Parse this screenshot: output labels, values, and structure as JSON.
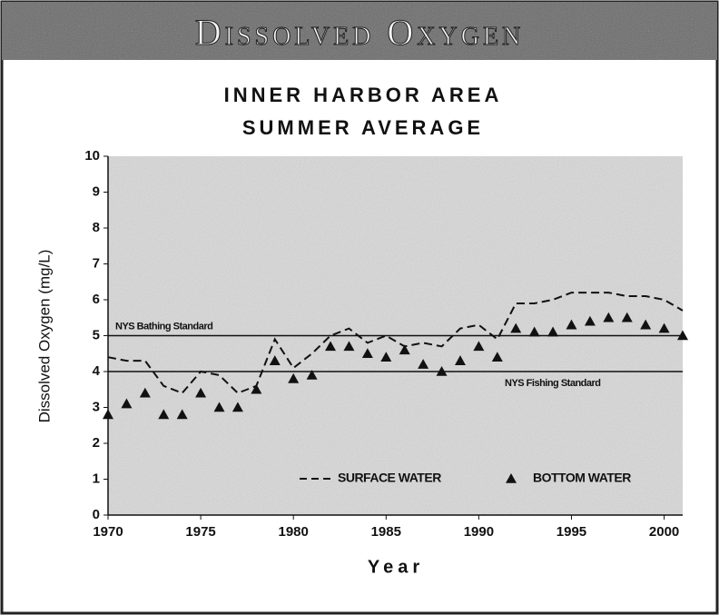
{
  "header": {
    "title": "Dissolved Oxygen"
  },
  "chart_data": {
    "type": "line",
    "title": "INNER HARBOR AREA",
    "subtitle": "SUMMER AVERAGE",
    "x_label": "Year",
    "y_label": "Dissolved Oxygen (mg/L)",
    "x": [
      1970,
      1971,
      1972,
      1973,
      1974,
      1975,
      1976,
      1977,
      1978,
      1979,
      1980,
      1981,
      1982,
      1983,
      1984,
      1985,
      1986,
      1987,
      1988,
      1989,
      1990,
      1991,
      1992,
      1993,
      1994,
      1995,
      1996,
      1997,
      1998,
      1999,
      2000,
      2001
    ],
    "series": [
      {
        "name": "SURFACE WATER",
        "color": "#111111",
        "style": "dashed",
        "values": [
          4.4,
          4.3,
          4.3,
          3.6,
          3.4,
          4.0,
          3.9,
          3.4,
          3.6,
          4.9,
          4.1,
          4.5,
          5.0,
          5.2,
          4.8,
          5.0,
          4.7,
          4.8,
          4.7,
          5.2,
          5.3,
          4.9,
          5.9,
          5.9,
          6.0,
          6.2,
          6.2,
          6.2,
          6.1,
          6.1,
          6.0,
          5.7
        ]
      },
      {
        "name": "BOTTOM WATER",
        "color": "#111111",
        "style": "triangle",
        "values": [
          2.8,
          3.1,
          3.4,
          2.8,
          2.8,
          3.4,
          3.0,
          3.0,
          3.5,
          4.3,
          3.8,
          3.9,
          4.7,
          4.7,
          4.5,
          4.4,
          4.6,
          4.2,
          4.0,
          4.3,
          4.7,
          4.4,
          5.2,
          5.1,
          5.1,
          5.3,
          5.4,
          5.5,
          5.5,
          5.3,
          5.2,
          5.0
        ]
      }
    ],
    "reference_lines": [
      {
        "value": 5,
        "label": "NYS Bathing Standard"
      },
      {
        "value": 4,
        "label": "NYS Fishing Standard"
      }
    ],
    "xlim": [
      1970,
      2001
    ],
    "xticks": [
      1970,
      1975,
      1980,
      1985,
      1990,
      1995,
      2000
    ],
    "ylim": [
      0,
      10
    ],
    "yticks": [
      0,
      1,
      2,
      3,
      4,
      5,
      6,
      7,
      8,
      9,
      10
    ],
    "legend": "bottom"
  }
}
